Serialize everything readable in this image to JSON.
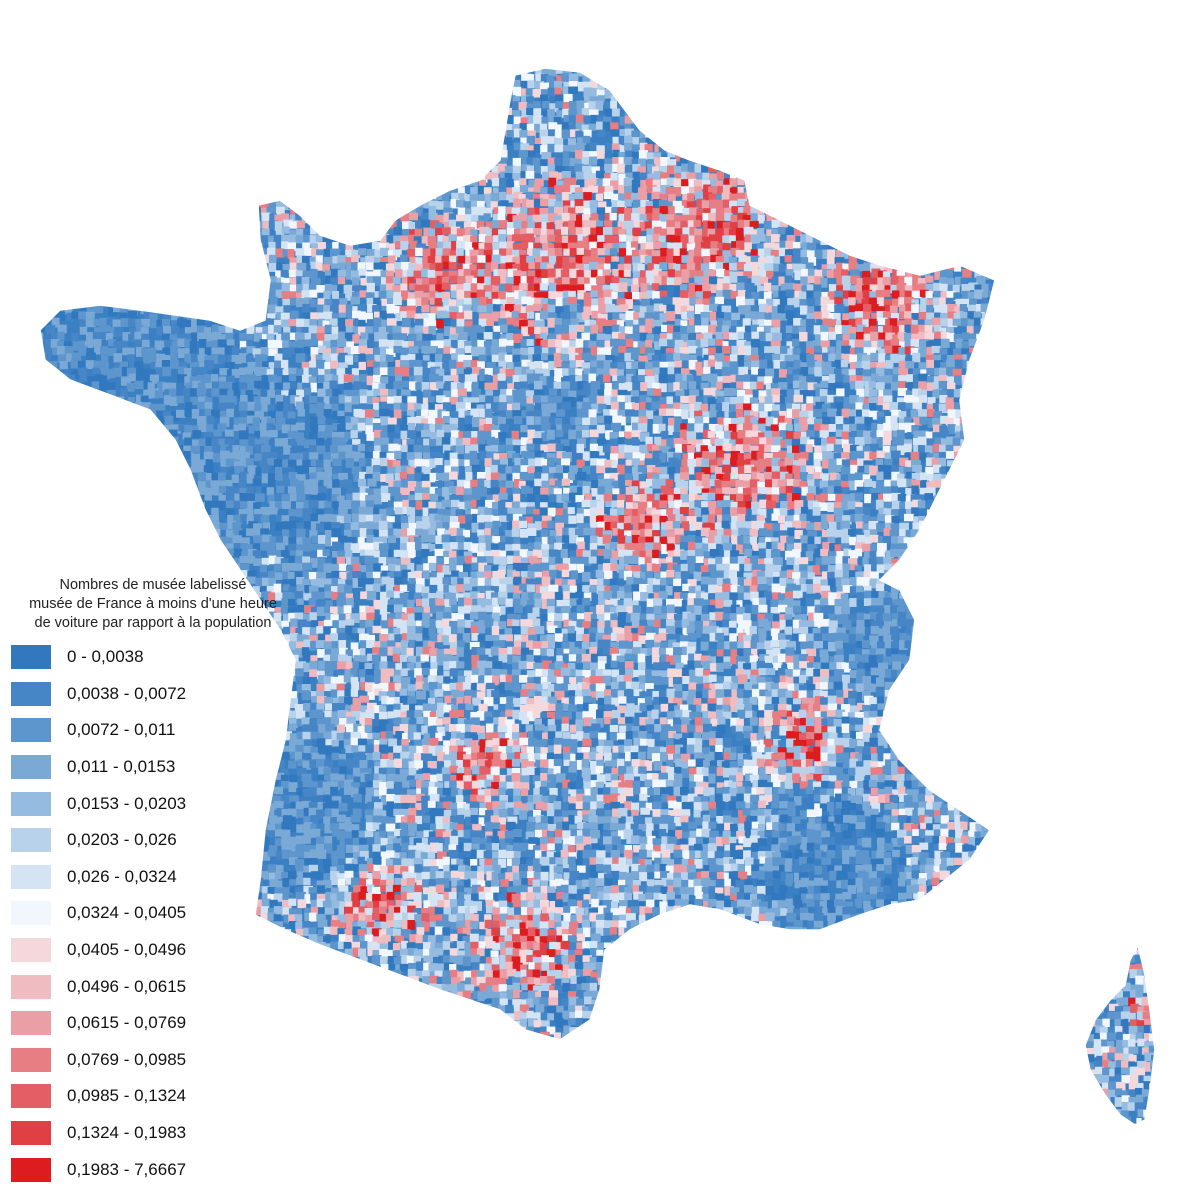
{
  "map": {
    "region": "France métropolitaine et Corse",
    "colors": {
      "land_blue": "#3a80c3",
      "land_red": "#e0313a",
      "border": "#ffffff"
    }
  },
  "legend": {
    "title_lines": [
      "Nombres de musée labelissé",
      "musée de France à moins d'une heure",
      "de voiture par rapport à la population"
    ],
    "items": [
      {
        "label": "0 - 0,0038",
        "color": "#3178bf"
      },
      {
        "label": "0,0038 - 0,0072",
        "color": "#4686c6"
      },
      {
        "label": "0,0072 - 0,011",
        "color": "#5d95cd"
      },
      {
        "label": "0,011 - 0,0153",
        "color": "#7aa9d6"
      },
      {
        "label": "0,0153 - 0,0203",
        "color": "#96bbe0"
      },
      {
        "label": "0,0203 - 0,026",
        "color": "#b7d2ea"
      },
      {
        "label": "0,026 - 0,0324",
        "color": "#d4e4f4"
      },
      {
        "label": "0,0324 - 0,0405",
        "color": "#f2f7fd"
      },
      {
        "label": "0,0405 - 0,0496",
        "color": "#f4d8dc"
      },
      {
        "label": "0,0496 - 0,0615",
        "color": "#efbcc2"
      },
      {
        "label": "0,0615 - 0,0769",
        "color": "#ea9ea5"
      },
      {
        "label": "0,0769 - 0,0985",
        "color": "#e67e84"
      },
      {
        "label": "0,0985 - 0,1324",
        "color": "#e45f65"
      },
      {
        "label": "0,1324 - 0,1983",
        "color": "#e04044"
      },
      {
        "label": "0,1983 - 7,6667",
        "color": "#dd1c1f"
      }
    ]
  }
}
